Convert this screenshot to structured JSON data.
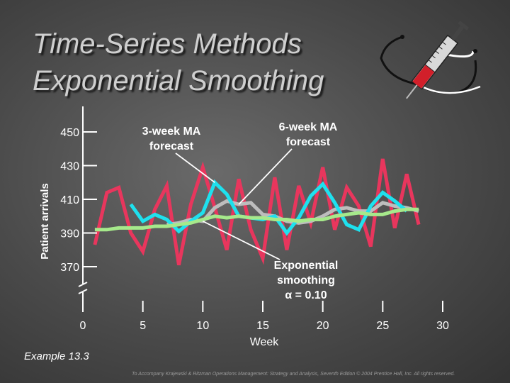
{
  "slide": {
    "title_line1": "Time-Series Methods",
    "title_line2": "Exponential Smoothing",
    "example": "Example 13.3",
    "footer": "To Accompany Krajewski & Ritzman Operations Management: Strategy and Analysis, Seventh Edition © 2004 Prentice Hall, Inc. All rights reserved.",
    "logo_icon": "syringe-stethoscope-icon"
  },
  "chart_data": {
    "type": "line",
    "xlabel": "Week",
    "ylabel": "Patient arrivals",
    "x_ticks": [
      0,
      5,
      10,
      15,
      20,
      25,
      30
    ],
    "y_ticks": [
      370,
      390,
      410,
      430,
      450
    ],
    "y_break_at": 0,
    "xlim": [
      0,
      30
    ],
    "ylim": [
      360,
      455
    ],
    "grid": false,
    "series": [
      {
        "color": "#e8365d",
        "x": [
          1,
          2,
          3,
          4,
          5,
          6,
          7,
          8,
          9,
          10,
          11,
          12,
          13,
          14,
          15,
          16,
          17,
          18,
          19,
          20,
          21,
          22,
          23,
          24,
          25,
          26,
          27,
          28
        ],
        "y": [
          383,
          414,
          417,
          390,
          379,
          404,
          418,
          371,
          407,
          429,
          405,
          380,
          422,
          392,
          375,
          423,
          380,
          418,
          396,
          429,
          392,
          417,
          406,
          382,
          434,
          393,
          425,
          395
        ]
      },
      {
        "color": "#bdbdbd",
        "x": [
          7,
          8,
          9,
          10,
          11,
          12,
          13,
          14,
          15,
          16,
          17,
          18,
          19,
          20,
          21,
          22,
          23,
          24,
          25,
          26,
          27,
          28
        ],
        "y": [
          395,
          396,
          398,
          397,
          405,
          409,
          407,
          408,
          401,
          400,
          397,
          396,
          397,
          400,
          404,
          405,
          403,
          403,
          408,
          406,
          405,
          403
        ]
      },
      {
        "color": "#1ee1ee",
        "x": [
          4,
          5,
          6,
          7,
          8,
          9,
          10,
          11,
          12,
          13,
          14,
          15,
          16,
          17,
          18,
          19,
          20,
          21,
          22,
          23,
          24,
          25,
          26,
          27
        ],
        "y": [
          407,
          397,
          401,
          398,
          391,
          397,
          402,
          420,
          413,
          400,
          399,
          398,
          400,
          390,
          399,
          412,
          419,
          408,
          395,
          392,
          406,
          414,
          409,
          403
        ]
      },
      {
        "color": "#a6e98b",
        "x": [
          1,
          2,
          3,
          4,
          5,
          6,
          7,
          8,
          9,
          10,
          11,
          12,
          13,
          14,
          15,
          16,
          17,
          18,
          19,
          20,
          21,
          22,
          23,
          24,
          25,
          26,
          27,
          28
        ],
        "y": [
          392,
          392,
          393,
          393,
          393,
          394,
          394,
          395,
          396,
          398,
          400,
          399,
          400,
          399,
          399,
          398,
          398,
          397,
          398,
          398,
          400,
          401,
          402,
          401,
          401,
          403,
          404,
          404
        ]
      }
    ],
    "annotations": {
      "ma3": {
        "line1": "3-week MA",
        "line2": "forecast",
        "points_to": [
          11,
          420
        ]
      },
      "ma6": {
        "line1": "6-week MA",
        "line2": "forecast",
        "points_to": [
          13,
          407
        ]
      },
      "es": {
        "line1": "Exponential",
        "line2": "smoothing",
        "line3": "α = 0.10",
        "points_to": [
          10,
          397
        ]
      }
    }
  }
}
